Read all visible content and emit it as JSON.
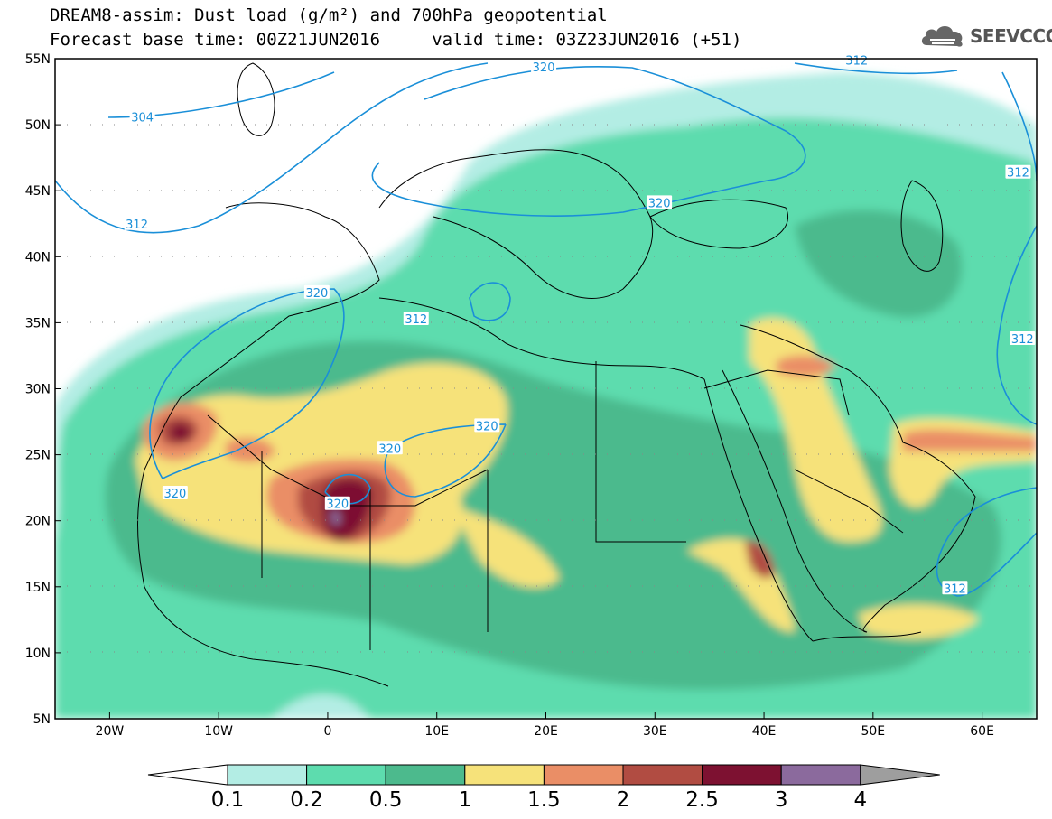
{
  "title": {
    "line1": "DREAM8-assim: Dust load (g/m²) and 700hPa geopotential",
    "line2": "Forecast base time: 00Z21JUN2016     valid time: 03Z23JUN2016 (+51)"
  },
  "logo": {
    "text": "SEEVCCC",
    "icon": "cloud-icon"
  },
  "map": {
    "lon_range": [
      -25,
      65
    ],
    "lat_range": [
      5,
      55
    ],
    "lat_ticks": [
      {
        "value": 55,
        "label": "55N"
      },
      {
        "value": 50,
        "label": "50N"
      },
      {
        "value": 45,
        "label": "45N"
      },
      {
        "value": 40,
        "label": "40N"
      },
      {
        "value": 35,
        "label": "35N"
      },
      {
        "value": 30,
        "label": "30N"
      },
      {
        "value": 25,
        "label": "25N"
      },
      {
        "value": 20,
        "label": "20N"
      },
      {
        "value": 15,
        "label": "15N"
      },
      {
        "value": 10,
        "label": "10N"
      },
      {
        "value": 5,
        "label": "5N"
      }
    ],
    "lon_ticks": [
      {
        "value": -20,
        "label": "20W"
      },
      {
        "value": -10,
        "label": "10W"
      },
      {
        "value": 0,
        "label": "0"
      },
      {
        "value": 10,
        "label": "10E"
      },
      {
        "value": 20,
        "label": "20E"
      },
      {
        "value": 30,
        "label": "30E"
      },
      {
        "value": 40,
        "label": "40E"
      },
      {
        "value": 50,
        "label": "50E"
      },
      {
        "value": 60,
        "label": "60E"
      }
    ],
    "contour_labels": [
      {
        "text": "304",
        "lon": -17,
        "lat": 50.6
      },
      {
        "text": "312",
        "lon": -17.5,
        "lat": 42.5
      },
      {
        "text": "320",
        "lon": 19.8,
        "lat": 54.4
      },
      {
        "text": "312",
        "lon": 48.5,
        "lat": 54.9
      },
      {
        "text": "312",
        "lon": 63.3,
        "lat": 46.4
      },
      {
        "text": "320",
        "lon": 30.4,
        "lat": 44.1
      },
      {
        "text": "320",
        "lon": -1,
        "lat": 37.3
      },
      {
        "text": "312",
        "lon": 8.1,
        "lat": 35.3
      },
      {
        "text": "312",
        "lon": 63.7,
        "lat": 33.8
      },
      {
        "text": "320",
        "lon": 14.6,
        "lat": 27.2
      },
      {
        "text": "320",
        "lon": 5.7,
        "lat": 25.5
      },
      {
        "text": "320",
        "lon": -14,
        "lat": 22.1
      },
      {
        "text": "320",
        "lon": 0.9,
        "lat": 21.3
      },
      {
        "text": "312",
        "lon": 57.5,
        "lat": 14.9
      }
    ],
    "dust_colors": [
      "#ffffff",
      "#b3ede4",
      "#5ddcae",
      "#4cba8d",
      "#f6e27a",
      "#ea8e66",
      "#b14c42",
      "#7d1131",
      "#8b6a9d",
      "#9e9e9e"
    ]
  },
  "colorbar": {
    "colors": [
      "#ffffff",
      "#b3ede4",
      "#5ddcae",
      "#4cba8d",
      "#f6e27a",
      "#ea8e66",
      "#b14c42",
      "#7d1131",
      "#8b6a9d",
      "#9e9e9e"
    ],
    "labels": [
      "0.1",
      "0.2",
      "0.5",
      "1",
      "1.5",
      "2",
      "2.5",
      "3",
      "4"
    ]
  }
}
